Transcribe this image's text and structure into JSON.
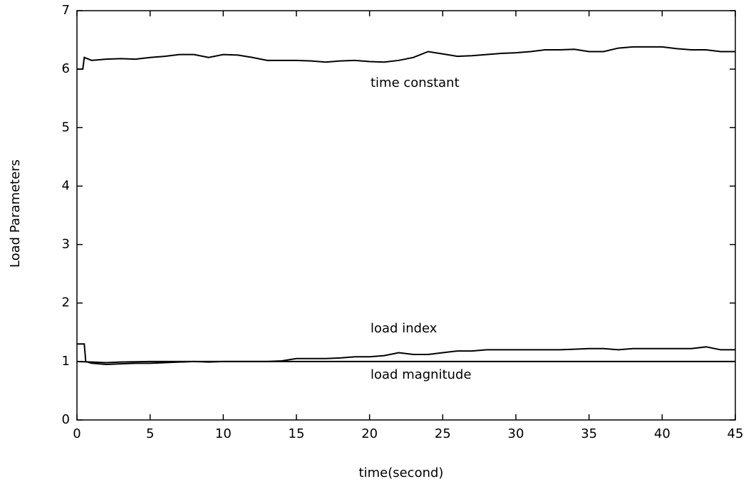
{
  "chart_data": {
    "type": "line",
    "xlabel": "time(second)",
    "ylabel": "Load Parameters",
    "xlim": [
      0,
      45
    ],
    "ylim": [
      0,
      7
    ],
    "xticks": [
      0,
      5,
      10,
      15,
      20,
      25,
      30,
      35,
      40,
      45
    ],
    "yticks": [
      0,
      1,
      2,
      3,
      4,
      5,
      6,
      7
    ],
    "color": "#000000",
    "series": [
      {
        "name": "time constant",
        "x": [
          0,
          0.4,
          0.5,
          1,
          2,
          3,
          4,
          5,
          6,
          7,
          8,
          9,
          10,
          11,
          12,
          13,
          14,
          15,
          16,
          17,
          18,
          19,
          20,
          21,
          22,
          23,
          24,
          25,
          26,
          27,
          28,
          29,
          30,
          31,
          32,
          33,
          34,
          35,
          36,
          37,
          38,
          39,
          40,
          41,
          42,
          43,
          44,
          45
        ],
        "values": [
          6.0,
          6.0,
          6.2,
          6.15,
          6.17,
          6.18,
          6.17,
          6.2,
          6.22,
          6.25,
          6.25,
          6.2,
          6.25,
          6.24,
          6.2,
          6.15,
          6.15,
          6.15,
          6.14,
          6.12,
          6.14,
          6.15,
          6.13,
          6.12,
          6.15,
          6.2,
          6.3,
          6.26,
          6.22,
          6.23,
          6.25,
          6.27,
          6.28,
          6.3,
          6.33,
          6.33,
          6.34,
          6.3,
          6.3,
          6.36,
          6.38,
          6.38,
          6.38,
          6.35,
          6.33,
          6.33,
          6.3,
          6.3
        ]
      },
      {
        "name": "load index",
        "x": [
          0,
          0.5,
          0.6,
          1,
          2,
          3,
          4,
          5,
          6,
          7,
          8,
          9,
          10,
          11,
          12,
          13,
          14,
          15,
          16,
          17,
          18,
          19,
          20,
          21,
          22,
          23,
          24,
          25,
          26,
          27,
          28,
          29,
          30,
          31,
          32,
          33,
          34,
          35,
          36,
          37,
          38,
          39,
          40,
          41,
          42,
          43,
          44,
          45
        ],
        "values": [
          1.3,
          1.3,
          1.0,
          0.97,
          0.95,
          0.96,
          0.97,
          0.97,
          0.98,
          0.99,
          1.0,
          0.99,
          1.0,
          1.0,
          1.0,
          1.0,
          1.01,
          1.05,
          1.05,
          1.05,
          1.06,
          1.08,
          1.08,
          1.1,
          1.15,
          1.12,
          1.12,
          1.15,
          1.18,
          1.18,
          1.2,
          1.2,
          1.2,
          1.2,
          1.2,
          1.2,
          1.21,
          1.22,
          1.22,
          1.2,
          1.22,
          1.22,
          1.22,
          1.22,
          1.22,
          1.25,
          1.2,
          1.2
        ]
      },
      {
        "name": "load magnitude",
        "x": [
          0,
          1,
          2,
          3,
          5,
          8,
          10,
          45
        ],
        "values": [
          1.0,
          0.99,
          0.98,
          0.99,
          1.0,
          1.0,
          1.0,
          1.0
        ]
      }
    ]
  }
}
